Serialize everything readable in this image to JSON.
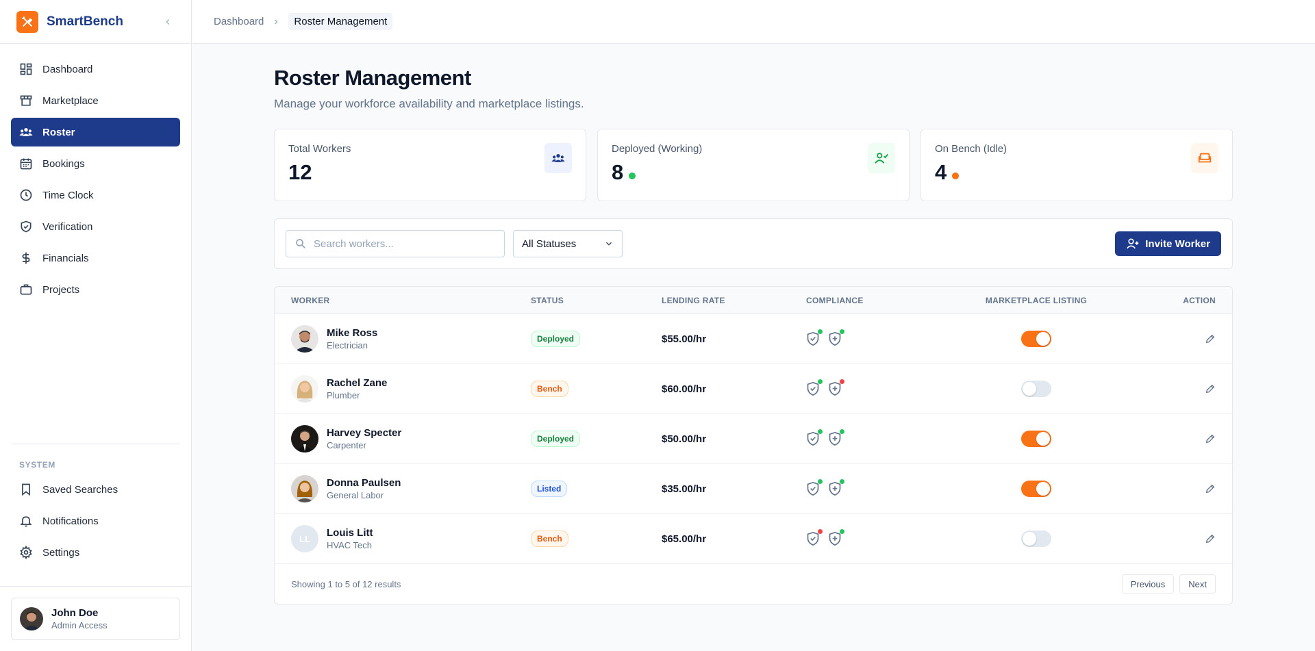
{
  "app": {
    "name": "SmartBench"
  },
  "nav": {
    "items": [
      {
        "label": "Dashboard",
        "icon": "dashboard-icon",
        "active": false
      },
      {
        "label": "Marketplace",
        "icon": "storefront-icon",
        "active": false
      },
      {
        "label": "Roster",
        "icon": "users-icon",
        "active": true
      },
      {
        "label": "Bookings",
        "icon": "calendar-icon",
        "active": false
      },
      {
        "label": "Time Clock",
        "icon": "clock-icon",
        "active": false
      },
      {
        "label": "Verification",
        "icon": "shield-check-icon",
        "active": false
      },
      {
        "label": "Financials",
        "icon": "dollar-icon",
        "active": false
      },
      {
        "label": "Projects",
        "icon": "briefcase-icon",
        "active": false
      }
    ],
    "system_heading": "SYSTEM",
    "system_items": [
      {
        "label": "Saved Searches",
        "icon": "bookmark-icon"
      },
      {
        "label": "Notifications",
        "icon": "bell-icon"
      },
      {
        "label": "Settings",
        "icon": "gear-icon"
      }
    ]
  },
  "user": {
    "name": "John Doe",
    "role": "Admin Access"
  },
  "breadcrumb": {
    "parent": "Dashboard",
    "current": "Roster Management"
  },
  "page": {
    "title": "Roster Management",
    "subtitle": "Manage your workforce availability and marketplace listings."
  },
  "stats": [
    {
      "label": "Total Workers",
      "value": "12",
      "icon": "users-icon",
      "icon_color": "#1e3a8a",
      "icon_bg": "#eef2ff",
      "dot_color": ""
    },
    {
      "label": "Deployed (Working)",
      "value": "8",
      "icon": "user-check-icon",
      "icon_color": "#16a34a",
      "icon_bg": "#f0fdf4",
      "dot_color": "#22c55e"
    },
    {
      "label": "On Bench (Idle)",
      "value": "4",
      "icon": "sofa-icon",
      "icon_color": "#f97316",
      "icon_bg": "#fff7ed",
      "dot_color": "#f97316"
    }
  ],
  "toolbar": {
    "search_placeholder": "Search workers...",
    "status_filter": "All Statuses",
    "invite_label": "Invite Worker"
  },
  "table": {
    "headers": {
      "worker": "WORKER",
      "status": "STATUS",
      "rate": "LENDING RATE",
      "compliance": "COMPLIANCE",
      "listing": "MARKETPLACE LISTING",
      "action": "ACTION"
    },
    "rows": [
      {
        "name": "Mike Ross",
        "role": "Electrician",
        "status": "Deployed",
        "status_kind": "deployed",
        "rate": "$55.00/hr",
        "comp1": "#22c55e",
        "comp2": "#22c55e",
        "listed": true,
        "initials": ""
      },
      {
        "name": "Rachel Zane",
        "role": "Plumber",
        "status": "Bench",
        "status_kind": "bench",
        "rate": "$60.00/hr",
        "comp1": "#22c55e",
        "comp2": "#ef4444",
        "listed": false,
        "initials": ""
      },
      {
        "name": "Harvey Specter",
        "role": "Carpenter",
        "status": "Deployed",
        "status_kind": "deployed",
        "rate": "$50.00/hr",
        "comp1": "#22c55e",
        "comp2": "#22c55e",
        "listed": true,
        "initials": ""
      },
      {
        "name": "Donna Paulsen",
        "role": "General Labor",
        "status": "Listed",
        "status_kind": "listed",
        "rate": "$35.00/hr",
        "comp1": "#22c55e",
        "comp2": "#22c55e",
        "listed": true,
        "initials": ""
      },
      {
        "name": "Louis Litt",
        "role": "HVAC Tech",
        "status": "Bench",
        "status_kind": "bench",
        "rate": "$65.00/hr",
        "comp1": "#ef4444",
        "comp2": "#22c55e",
        "listed": false,
        "initials": "LL"
      }
    ],
    "footer": "Showing 1 to 5 of 12 results",
    "prev_label": "Previous",
    "next_label": "Next"
  }
}
